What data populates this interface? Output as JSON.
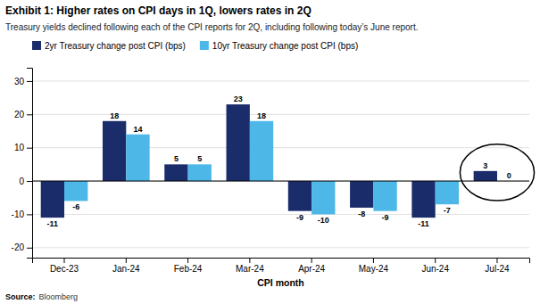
{
  "chart_data": {
    "type": "bar",
    "title": "Exhibit 1: Higher rates on CPI days in 1Q, lowers rates in 2Q",
    "subtitle": "Treasury yields declined following each of the CPI reports for 2Q, including following today’s June report.",
    "source": {
      "label": "Source:",
      "text": "Bloomberg"
    },
    "x_label": "CPI month",
    "categories": [
      "Dec-23",
      "Jan-24",
      "Feb-24",
      "Mar-24",
      "Apr-24",
      "May-24",
      "Jun-24",
      "Jul-24"
    ],
    "series": [
      {
        "name": "2yr Treasury change post CPI (bps)",
        "color": "#1b2c6b",
        "values": [
          -11,
          18,
          5,
          23,
          -9,
          -8,
          -11,
          3
        ]
      },
      {
        "name": "10yr Treasury change post CPI (bps)",
        "color": "#4db8e8",
        "values": [
          -6,
          14,
          5,
          18,
          -10,
          -9,
          -7,
          0
        ]
      }
    ],
    "ylim": [
      -23,
      34
    ],
    "yticks": [
      -20,
      -10,
      0,
      10,
      20,
      30
    ],
    "grid": true,
    "legend": "upper left",
    "data_labels": true,
    "annotations": [
      {
        "type": "ellipse",
        "category": "Jul-24"
      }
    ]
  }
}
